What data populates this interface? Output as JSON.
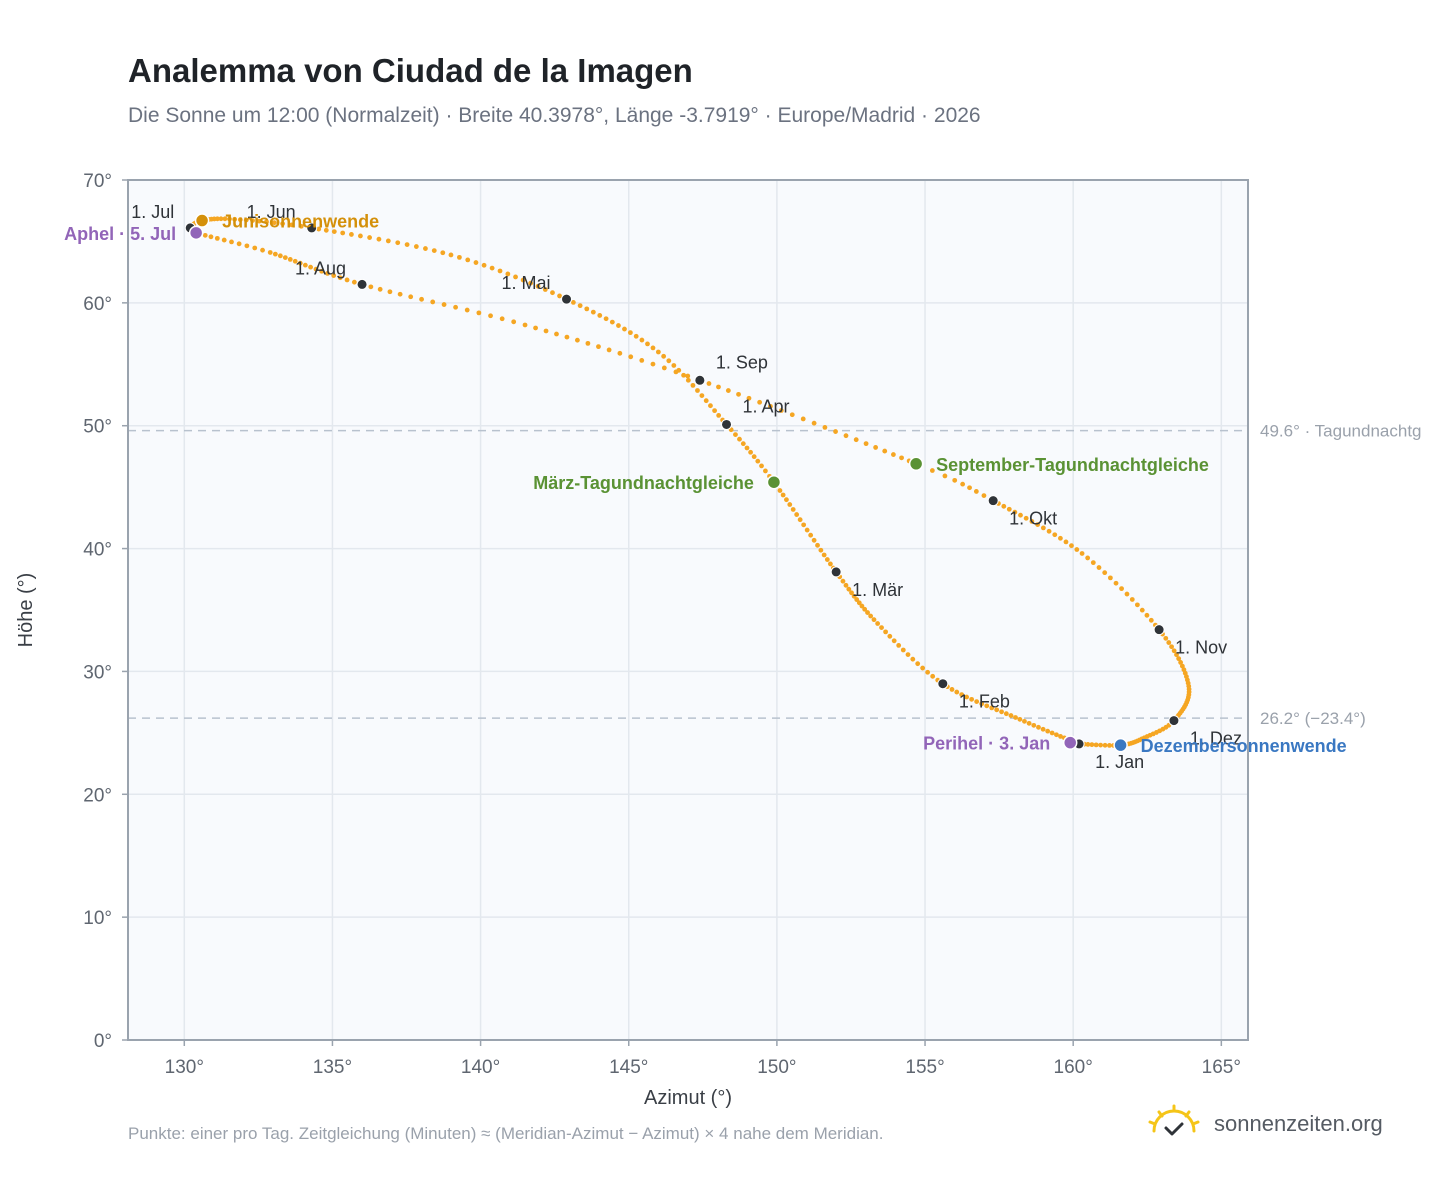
{
  "title": "Analemma von Ciudad de la Imagen",
  "subtitle": "Die Sonne um 12:00 (Normalzeit) · Breite 40.3978°, Länge -3.7919° · Europe/Madrid · 2026",
  "footnote": "Punkte: einer pro Tag. Zeitgleichung (Minuten) ≈ (Meridian-Azimut − Azimut) × 4 nahe dem Meridian.",
  "brand": {
    "text": "sonnenzeiten.org",
    "icon": "sun-logo-icon"
  },
  "colors": {
    "curve": "#f5a623",
    "month_marker": "#2f3338",
    "solstice_june": "#d4900a",
    "solstice_december": "#3a78c2",
    "equinox": "#5a9234",
    "perihelion_aphelion": "#9265b8",
    "reference_line": "#b8c2ce",
    "plot_background": "#f8fafd",
    "plot_border": "#9aa3ae"
  },
  "chart_data": {
    "type": "scatter",
    "title": "Analemma von Ciudad de la Imagen",
    "xlabel": "Azimut (°)",
    "ylabel": "Höhe (°)",
    "xlim": [
      128.1,
      165.9
    ],
    "ylim": [
      0,
      70
    ],
    "x_ticks": [
      130,
      135,
      140,
      145,
      150,
      155,
      160,
      165
    ],
    "y_ticks": [
      0,
      10,
      20,
      30,
      40,
      50,
      60,
      70
    ],
    "tick_suffix": "°",
    "grid": true,
    "legend": "none",
    "series": [
      {
        "kind": "daily-points",
        "anchors": [
          {
            "doy": 1,
            "x": 160.2,
            "y": 24.1
          },
          {
            "doy": 16,
            "x": 158.2,
            "y": 26.1
          },
          {
            "doy": 32,
            "x": 155.6,
            "y": 29.0
          },
          {
            "doy": 46,
            "x": 153.4,
            "y": 33.9
          },
          {
            "doy": 60,
            "x": 152.0,
            "y": 38.1
          },
          {
            "doy": 79,
            "x": 149.9,
            "y": 45.4
          },
          {
            "doy": 91,
            "x": 148.3,
            "y": 50.1
          },
          {
            "doy": 106,
            "x": 146.0,
            "y": 56.0
          },
          {
            "doy": 121,
            "x": 142.9,
            "y": 60.3
          },
          {
            "doy": 136,
            "x": 139.0,
            "y": 63.9
          },
          {
            "doy": 152,
            "x": 134.3,
            "y": 66.1
          },
          {
            "doy": 162,
            "x": 131.7,
            "y": 66.8
          },
          {
            "doy": 172,
            "x": 130.6,
            "y": 66.7
          },
          {
            "doy": 182,
            "x": 130.2,
            "y": 66.1
          },
          {
            "doy": 186,
            "x": 130.4,
            "y": 65.7
          },
          {
            "doy": 197,
            "x": 132.9,
            "y": 64.1
          },
          {
            "doy": 213,
            "x": 136.0,
            "y": 61.5
          },
          {
            "doy": 228,
            "x": 141.5,
            "y": 58.2
          },
          {
            "doy": 244,
            "x": 147.4,
            "y": 53.7
          },
          {
            "doy": 266,
            "x": 154.7,
            "y": 46.9
          },
          {
            "doy": 274,
            "x": 157.3,
            "y": 43.9
          },
          {
            "doy": 290,
            "x": 160.3,
            "y": 39.6
          },
          {
            "doy": 305,
            "x": 162.9,
            "y": 33.4
          },
          {
            "doy": 320,
            "x": 163.9,
            "y": 28.8
          },
          {
            "doy": 335,
            "x": 163.4,
            "y": 26.0
          },
          {
            "doy": 345,
            "x": 162.4,
            "y": 24.6
          },
          {
            "doy": 355,
            "x": 161.6,
            "y": 24.0
          },
          {
            "doy": 366,
            "x": 160.2,
            "y": 24.1
          }
        ]
      }
    ],
    "month_markers": [
      {
        "label": "1. Jan",
        "x": 160.2,
        "y": 24.1,
        "pos": "below-right"
      },
      {
        "label": "1. Feb",
        "x": 155.6,
        "y": 29.0,
        "pos": "below-right"
      },
      {
        "label": "1. Mär",
        "x": 152.0,
        "y": 38.1,
        "pos": "below-right"
      },
      {
        "label": "1. Apr",
        "x": 148.3,
        "y": 50.1,
        "pos": "above-right"
      },
      {
        "label": "1. Mai",
        "x": 142.9,
        "y": 60.3,
        "pos": "above-left"
      },
      {
        "label": "1. Jun",
        "x": 134.3,
        "y": 66.1,
        "pos": "above-left"
      },
      {
        "label": "1. Jul",
        "x": 130.2,
        "y": 66.1,
        "pos": "above-left"
      },
      {
        "label": "1. Aug",
        "x": 136.0,
        "y": 61.5,
        "pos": "above-left"
      },
      {
        "label": "1. Sep",
        "x": 147.4,
        "y": 53.7,
        "pos": "above-right"
      },
      {
        "label": "1. Okt",
        "x": 157.3,
        "y": 43.9,
        "pos": "below-right"
      },
      {
        "label": "1. Nov",
        "x": 162.9,
        "y": 33.4,
        "pos": "below-right"
      },
      {
        "label": "1. Dez",
        "x": 163.4,
        "y": 26.0,
        "pos": "below-right"
      }
    ],
    "events": [
      {
        "label": "Junisonnenwende",
        "x": 130.6,
        "y": 66.7,
        "color": "#d4900a",
        "side": "right"
      },
      {
        "label": "Dezembersonnenwende",
        "x": 161.6,
        "y": 24.0,
        "color": "#3a78c2",
        "side": "right"
      },
      {
        "label": "März-Tagundnachtgleiche",
        "x": 149.9,
        "y": 45.4,
        "color": "#5a9234",
        "side": "left"
      },
      {
        "label": "September-Tagundnachtgleiche",
        "x": 154.7,
        "y": 46.9,
        "color": "#5a9234",
        "side": "right"
      },
      {
        "label": "Aphel · 5. Jul",
        "x": 130.4,
        "y": 65.7,
        "color": "#9265b8",
        "side": "left"
      },
      {
        "label": "Perihel · 3. Jan",
        "x": 159.9,
        "y": 24.2,
        "color": "#9265b8",
        "side": "left"
      }
    ],
    "reference_lines": [
      {
        "y": 49.6,
        "label": "49.6° · Tagundnachtg"
      },
      {
        "y": 26.2,
        "label": "26.2° (−23.4°)"
      }
    ]
  }
}
